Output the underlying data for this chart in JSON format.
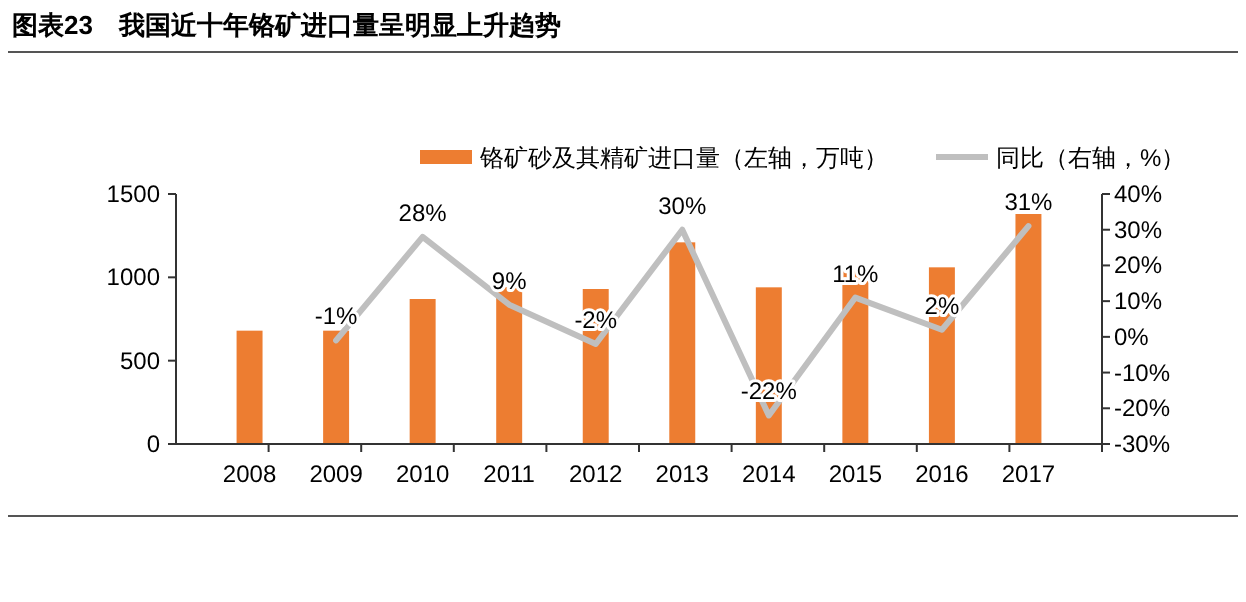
{
  "chart_data": {
    "type": "bar",
    "title": "图表23　我国近十年铬矿进口量呈明显上升趋势",
    "categories": [
      "2008",
      "2009",
      "2010",
      "2011",
      "2012",
      "2013",
      "2014",
      "2015",
      "2016",
      "2017"
    ],
    "series": [
      {
        "name": "铬矿砂及其精矿进口量（左轴，万吨）",
        "color": "#ed7d31",
        "values": [
          680,
          680,
          870,
          940,
          930,
          1210,
          940,
          1040,
          1060,
          1380
        ]
      },
      {
        "name": "同比（右轴，%）",
        "color": "#bfbfbf",
        "type": "line",
        "axis": "y2",
        "values": [
          null,
          -1,
          28,
          9,
          -2,
          30,
          -22,
          11,
          2,
          31
        ],
        "value_labels": [
          null,
          "-1%",
          "28%",
          "9%",
          "-2%",
          "30%",
          "-22%",
          "11%",
          "2%",
          "31%"
        ]
      }
    ],
    "ylim": [
      0,
      1500
    ],
    "yticks": [
      0,
      500,
      1000,
      1500
    ],
    "y2lim": [
      -30,
      40
    ],
    "y2ticks": [
      {
        "value": -30,
        "label": "-30%"
      },
      {
        "value": -20,
        "label": "-20%"
      },
      {
        "value": -10,
        "label": "-10%"
      },
      {
        "value": 0,
        "label": "0%"
      },
      {
        "value": 10,
        "label": "10%"
      },
      {
        "value": 20,
        "label": "20%"
      },
      {
        "value": 30,
        "label": "30%"
      },
      {
        "value": 40,
        "label": "40%"
      }
    ],
    "legend": "top",
    "grid": false,
    "marker": "none",
    "line_style": "solid"
  }
}
